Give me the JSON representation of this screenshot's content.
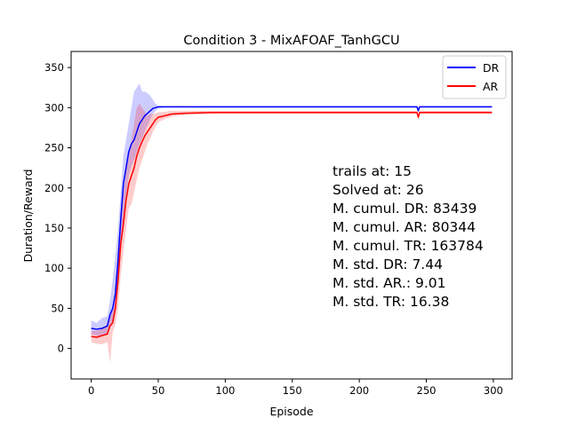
{
  "chart_data": {
    "type": "line",
    "title": "Condition 3 - MixAFOAF_TanhGCU",
    "xlabel": "Episode",
    "ylabel": "Duration/Reward",
    "xlim": [
      -15,
      314
    ],
    "ylim": [
      -38,
      370
    ],
    "xticks": [
      0,
      50,
      100,
      150,
      200,
      250,
      300
    ],
    "yticks": [
      0,
      50,
      100,
      150,
      200,
      250,
      300,
      350
    ],
    "grid": false,
    "legend_position": "top-right",
    "series": [
      {
        "name": "DR",
        "color": "#0000ff",
        "band_color": "#0000ff",
        "x": [
          0,
          4,
          8,
          12,
          14,
          16,
          18,
          20,
          22,
          24,
          26,
          28,
          30,
          32,
          34,
          36,
          38,
          40,
          42,
          44,
          46,
          48,
          50,
          55,
          60,
          80,
          120,
          200,
          243,
          244,
          245,
          299
        ],
        "y": [
          25,
          24,
          25,
          28,
          42,
          50,
          68,
          110,
          160,
          205,
          225,
          245,
          255,
          260,
          270,
          280,
          285,
          290,
          293,
          296,
          299,
          300,
          301,
          301,
          301,
          301,
          301,
          301,
          301,
          296,
          301,
          301
        ],
        "lower": [
          18,
          16,
          15,
          18,
          28,
          35,
          45,
          75,
          120,
          160,
          190,
          215,
          228,
          235,
          245,
          255,
          262,
          270,
          278,
          285,
          292,
          296,
          299,
          300,
          300,
          300,
          300,
          300,
          300,
          294,
          300,
          300
        ],
        "upper": [
          35,
          32,
          38,
          40,
          60,
          85,
          115,
          150,
          195,
          240,
          260,
          280,
          300,
          320,
          325,
          330,
          320,
          320,
          318,
          315,
          310,
          305,
          302,
          302,
          302,
          302,
          302,
          302,
          302,
          300,
          302,
          302
        ]
      },
      {
        "name": "AR",
        "color": "#ff0000",
        "band_color": "#ff0000",
        "x": [
          0,
          4,
          8,
          12,
          14,
          16,
          18,
          20,
          22,
          24,
          26,
          28,
          30,
          32,
          34,
          36,
          38,
          40,
          42,
          44,
          46,
          48,
          50,
          55,
          60,
          70,
          90,
          120,
          200,
          243,
          244,
          245,
          299
        ],
        "y": [
          15,
          14,
          16,
          18,
          28,
          32,
          50,
          85,
          130,
          155,
          185,
          205,
          215,
          225,
          240,
          250,
          258,
          265,
          270,
          275,
          280,
          285,
          288,
          290,
          292,
          293,
          294,
          294,
          294,
          294,
          288,
          294,
          294
        ],
        "lower": [
          8,
          6,
          5,
          8,
          -18,
          20,
          30,
          50,
          90,
          120,
          150,
          175,
          180,
          195,
          210,
          225,
          235,
          245,
          255,
          262,
          270,
          276,
          282,
          286,
          289,
          291,
          292,
          292,
          292,
          292,
          284,
          292,
          292
        ],
        "upper": [
          22,
          22,
          25,
          28,
          40,
          48,
          70,
          120,
          165,
          195,
          220,
          240,
          260,
          280,
          300,
          305,
          300,
          295,
          290,
          292,
          292,
          293,
          294,
          295,
          296,
          296,
          296,
          296,
          296,
          296,
          292,
          296,
          296
        ]
      }
    ],
    "annotations": [
      "trails at: 15",
      "Solved at: 26",
      "M. cumul. DR: 83439",
      "M. cumul. AR: 80344",
      "M. cumul. TR: 163784",
      "M. std. DR: 7.44",
      "M. std. AR.: 9.01",
      "M. std. TR: 16.38"
    ]
  }
}
